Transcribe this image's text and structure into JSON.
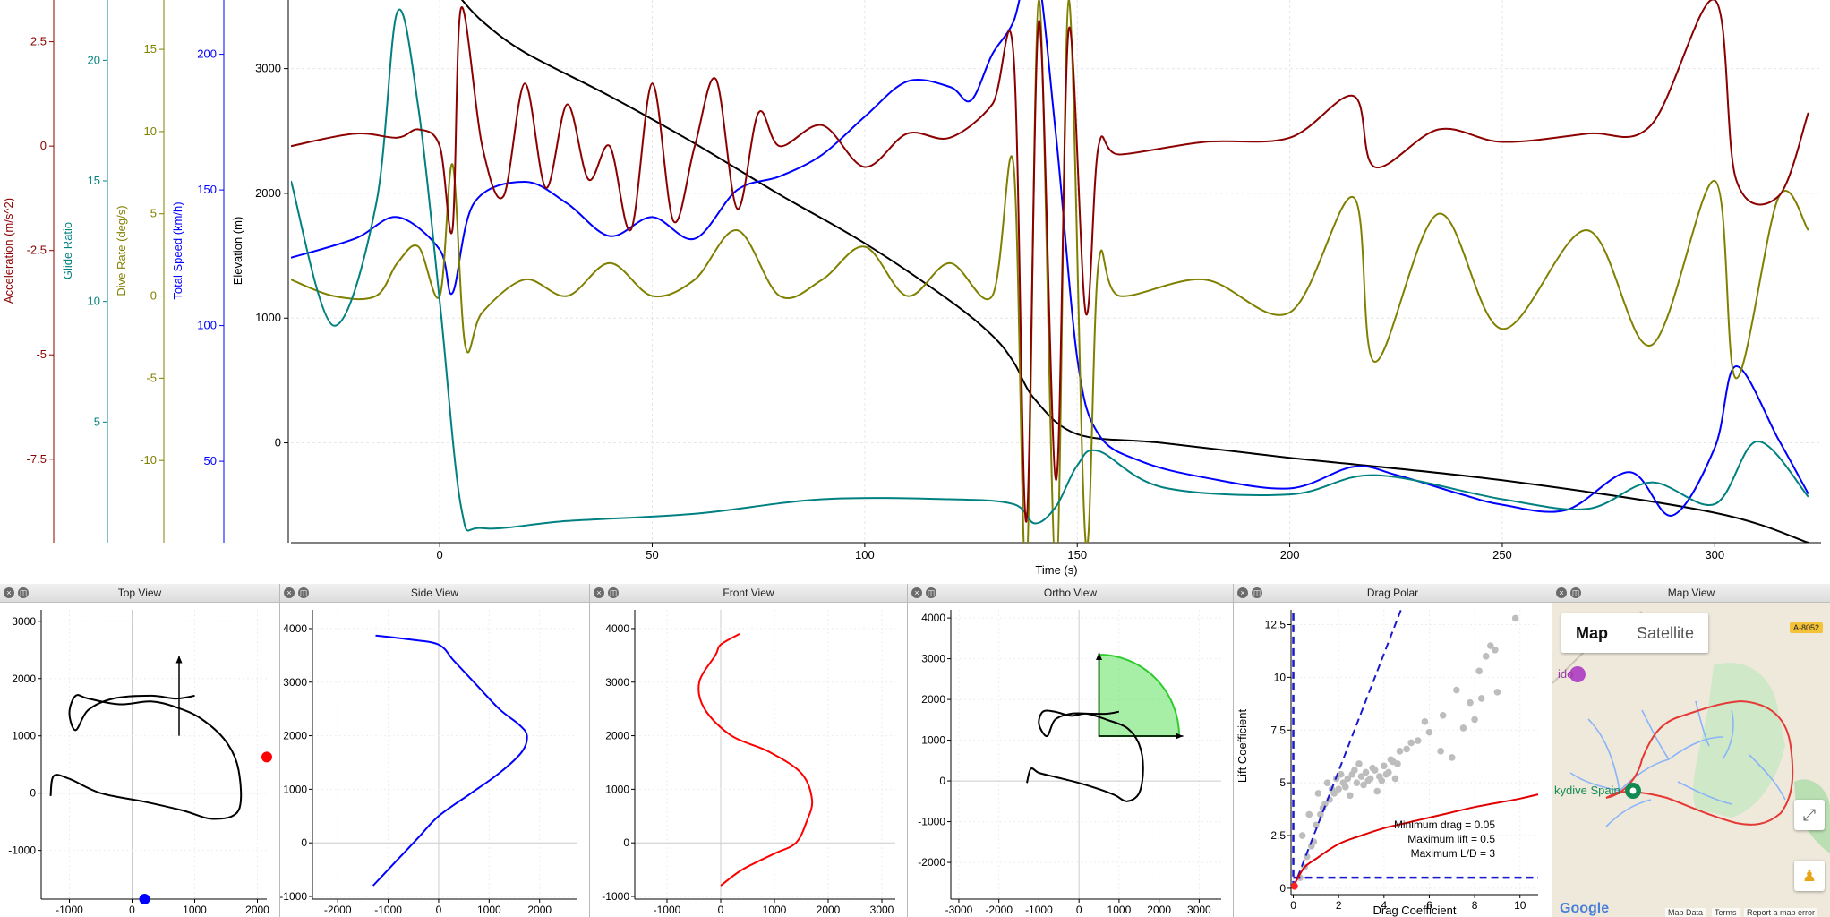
{
  "chart_data": [
    {
      "name": "time-series",
      "type": "line",
      "xlabel": "Time (s)",
      "xlim": [
        -35,
        325
      ],
      "xticks": [
        0,
        50,
        100,
        150,
        200,
        250,
        300
      ],
      "axes": [
        {
          "label": "Acceleration (m/s^2)",
          "color": "#8b0000",
          "range": [
            -9.5,
            3.5
          ],
          "ticks": [
            2.5,
            0,
            -2.5,
            -5,
            -7.5
          ]
        },
        {
          "label": "Glide Ratio",
          "color": "#008080",
          "range": [
            0,
            22.5
          ],
          "ticks": [
            20,
            15,
            10,
            5
          ]
        },
        {
          "label": "Dive Rate (deg/s)",
          "color": "#808000",
          "range": [
            -15,
            18
          ],
          "ticks": [
            15,
            10,
            5,
            0,
            -5,
            -10
          ]
        },
        {
          "label": "Total Speed (km/h)",
          "color": "#0000ff",
          "range": [
            20,
            220
          ],
          "ticks": [
            200,
            150,
            100,
            50
          ]
        },
        {
          "label": "Elevation (m)",
          "color": "#000000",
          "range": [
            -800,
            3550
          ],
          "ticks": [
            3000,
            2000,
            1000,
            0
          ]
        }
      ],
      "series": [
        {
          "name": "Elevation (m)",
          "axis": 4,
          "color": "#000000",
          "x": [
            5,
            10,
            20,
            40,
            60,
            80,
            100,
            120,
            130,
            135,
            140,
            150,
            170,
            200,
            250,
            300,
            322
          ],
          "y": [
            3560,
            3380,
            3130,
            2780,
            2400,
            1990,
            1600,
            1140,
            860,
            650,
            350,
            70,
            0,
            -120,
            -300,
            -560,
            -800
          ]
        },
        {
          "name": "Total Speed (km/h)",
          "axis": 3,
          "color": "#0000ff",
          "x": [
            -35,
            -20,
            -10,
            0,
            3,
            8,
            20,
            30,
            40,
            50,
            60,
            70,
            80,
            90,
            100,
            110,
            120,
            125,
            130,
            135,
            140,
            145,
            150,
            155,
            165,
            180,
            200,
            215,
            225,
            240,
            250,
            265,
            280,
            290,
            300,
            305,
            315,
            322
          ],
          "y": [
            125,
            132,
            140,
            128,
            112,
            145,
            153,
            145,
            133,
            140,
            132,
            150,
            155,
            163,
            177,
            190,
            188,
            183,
            200,
            212,
            235,
            170,
            88,
            60,
            50,
            44,
            40,
            48,
            45,
            38,
            34,
            32,
            46,
            30,
            55,
            85,
            58,
            38
          ]
        },
        {
          "name": "Dive Rate (deg/s)",
          "axis": 2,
          "color": "#808000",
          "x": [
            -35,
            -25,
            -15,
            -10,
            -5,
            0,
            3,
            6,
            10,
            20,
            30,
            40,
            50,
            60,
            70,
            80,
            90,
            100,
            110,
            120,
            130,
            135,
            138,
            141,
            145,
            148,
            152,
            155,
            160,
            180,
            200,
            215,
            220,
            235,
            250,
            270,
            285,
            300,
            305,
            315,
            322
          ],
          "y": [
            1,
            0,
            0,
            2,
            3,
            0,
            8,
            -3,
            -1,
            1,
            0,
            2,
            0,
            1,
            4,
            0,
            1,
            3,
            0,
            2,
            0,
            8,
            -17,
            18,
            -17,
            18,
            -15,
            2,
            0,
            1,
            -1,
            6,
            -4,
            5,
            -2,
            4,
            -3,
            7,
            -5,
            6,
            4
          ]
        },
        {
          "name": "Glide Ratio",
          "axis": 1,
          "color": "#008080",
          "x": [
            -35,
            -25,
            -15,
            -10,
            -5,
            0,
            5,
            10,
            30,
            60,
            90,
            120,
            135,
            140,
            145,
            150,
            155,
            170,
            200,
            220,
            250,
            270,
            285,
            300,
            310,
            322
          ],
          "y": [
            15,
            9,
            14,
            22,
            18,
            10,
            1.5,
            0.6,
            0.9,
            1.2,
            1.8,
            1.8,
            1.6,
            0.8,
            1.5,
            3.2,
            3.8,
            2.3,
            2.0,
            2.8,
            1.8,
            1.4,
            2.5,
            1.6,
            4.2,
            1.9
          ]
        },
        {
          "name": "Acceleration (m/s^2)",
          "axis": 0,
          "color": "#8b0000",
          "x": [
            -35,
            -20,
            -10,
            -5,
            0,
            3,
            5,
            10,
            15,
            20,
            25,
            30,
            35,
            40,
            45,
            50,
            55,
            60,
            65,
            70,
            75,
            80,
            90,
            100,
            110,
            120,
            130,
            135,
            138,
            141,
            145,
            148,
            152,
            155,
            160,
            180,
            200,
            215,
            220,
            235,
            250,
            270,
            285,
            300,
            305,
            315,
            322
          ],
          "y": [
            0,
            0.3,
            0.2,
            0.4,
            0,
            -2,
            3.3,
            0,
            -1.2,
            1.5,
            -1,
            1,
            -0.8,
            0,
            -2,
            1.5,
            -1.8,
            0,
            1.6,
            -1.5,
            0.8,
            0,
            0.5,
            -0.5,
            0.3,
            0.2,
            1,
            2.2,
            -9,
            3,
            -8,
            2.8,
            -4,
            0,
            -0.2,
            0.1,
            0.2,
            1.2,
            -0.5,
            0.4,
            0.1,
            0.3,
            0.5,
            3.5,
            -0.8,
            -1.2,
            0.8
          ]
        }
      ]
    },
    {
      "name": "top-view",
      "type": "line",
      "title": "Top View",
      "xlim": [
        -1450,
        2150
      ],
      "ylim": [
        -1850,
        3200
      ],
      "xticks": [
        -1000,
        0,
        1000,
        2000
      ],
      "yticks": [
        3000,
        2000,
        1000,
        0,
        -1000
      ],
      "series": [
        {
          "color": "#000000",
          "x": [
            -1300,
            -1250,
            -1000,
            -500,
            200,
            800,
            1300,
            1700,
            1700,
            1500,
            1100,
            700,
            300,
            -200,
            -700,
            -900,
            -1000,
            -900,
            -700,
            -300,
            300,
            700,
            1000
          ],
          "y": [
            -50,
            300,
            250,
            0,
            -150,
            -300,
            -450,
            -300,
            400,
            900,
            1300,
            1500,
            1600,
            1550,
            1650,
            1700,
            1400,
            1100,
            1450,
            1650,
            1700,
            1650,
            1700
          ]
        }
      ],
      "arrow": {
        "x": [
          750,
          750
        ],
        "y": [
          1000,
          2400
        ]
      },
      "markers": [
        {
          "x": 200,
          "y": -1850,
          "color": "#0000ff"
        },
        {
          "x": 2150,
          "y": 630,
          "color": "#ff0000"
        }
      ]
    },
    {
      "name": "side-view",
      "type": "line",
      "title": "Side View",
      "xlim": [
        -2500,
        2750
      ],
      "ylim": [
        -1050,
        4350
      ],
      "xticks": [
        -2000,
        -1000,
        0,
        1000,
        2000
      ],
      "yticks": [
        4000,
        3000,
        2000,
        1000,
        0,
        -1000
      ],
      "series": [
        {
          "color": "#0000ff",
          "x": [
            -1250,
            -600,
            0,
            300,
            700,
            1200,
            1600,
            1750,
            1650,
            1200,
            600,
            0,
            -400,
            -700,
            -1000,
            -1300
          ],
          "y": [
            3870,
            3800,
            3700,
            3400,
            3000,
            2500,
            2200,
            2000,
            1700,
            1300,
            900,
            500,
            100,
            -200,
            -500,
            -800
          ]
        }
      ]
    },
    {
      "name": "front-view",
      "type": "line",
      "title": "Front View",
      "xlim": [
        -1600,
        3250
      ],
      "ylim": [
        -1050,
        4350
      ],
      "xticks": [
        -1000,
        0,
        1000,
        2000,
        3000
      ],
      "yticks": [
        4000,
        3000,
        2000,
        1000,
        0,
        -1000
      ],
      "series": [
        {
          "color": "#ff0000",
          "x": [
            350,
            0,
            -100,
            -400,
            -300,
            200,
            900,
            1500,
            1700,
            1600,
            1400,
            1000,
            400,
            0
          ],
          "y": [
            3900,
            3700,
            3500,
            3000,
            2500,
            2000,
            1700,
            1300,
            800,
            400,
            0,
            -200,
            -500,
            -800
          ]
        }
      ]
    },
    {
      "name": "ortho-view",
      "type": "line",
      "title": "Ortho View",
      "xlim": [
        -3200,
        3550
      ],
      "ylim": [
        -2900,
        4200
      ],
      "xticks": [
        -3000,
        -2000,
        -1000,
        0,
        1000,
        2000,
        3000
      ],
      "yticks": [
        4000,
        3000,
        2000,
        1000,
        0,
        -1000,
        -2000
      ],
      "series": [
        {
          "color": "#000000",
          "x": [
            -1300,
            -1200,
            -1000,
            -600,
            0,
            500,
            900,
            1200,
            1500,
            1600,
            1500,
            1200,
            700,
            200,
            -200,
            -600,
            -900,
            -1000,
            -800,
            -600,
            -200,
            300,
            700,
            1000
          ],
          "y": [
            -50,
            300,
            200,
            100,
            -50,
            -200,
            -350,
            -500,
            -300,
            300,
            900,
            1300,
            1500,
            1650,
            1600,
            1700,
            1700,
            1400,
            1100,
            1500,
            1650,
            1650,
            1650,
            1700
          ]
        }
      ],
      "sector": {
        "cx": 500,
        "cy": 1100,
        "r": 2000
      },
      "arrows": [
        {
          "x": [
            500,
            500
          ],
          "y": [
            1100,
            3150
          ]
        },
        {
          "x": [
            500,
            2600
          ],
          "y": [
            1100,
            1100
          ]
        }
      ]
    },
    {
      "name": "drag-polar",
      "type": "scatter",
      "title": "Drag Polar",
      "xlabel": "Drag Coefficient",
      "ylabel": "Lift Coefficient",
      "xlim": [
        -0.1,
        10.8
      ],
      "ylim": [
        -0.3,
        13.2
      ],
      "xticks": [
        0,
        2,
        4,
        6,
        8,
        10
      ],
      "yticks": [
        12.5,
        10,
        7.5,
        5,
        2.5,
        0
      ],
      "points": {
        "x": [
          0.5,
          0.8,
          1,
          1.2,
          1.4,
          1.6,
          1.8,
          2,
          2.2,
          2.4,
          2.6,
          2.8,
          3,
          3.2,
          3.4,
          3.6,
          3.8,
          4,
          4.2,
          4.4,
          4.6,
          0.7,
          1.1,
          1.5,
          1.9,
          2.3,
          2.7,
          3.1,
          3.5,
          3.9,
          4.3,
          4.7,
          5,
          5.5,
          6,
          6.5,
          7,
          7.5,
          8,
          8.3,
          8.5,
          8.7,
          8.9,
          9,
          8.2,
          7.8,
          9.8,
          0.3,
          0.4,
          0.6,
          0.9,
          1.3,
          1.7,
          2.1,
          2.5,
          2.9,
          3.3,
          3.7,
          4.1,
          4.5,
          5.2,
          5.8,
          6.6,
          7.2
        ],
        "y": [
          1,
          2,
          3,
          3.5,
          4,
          4.2,
          4.5,
          4.7,
          5,
          5.2,
          5.4,
          5,
          5.3,
          5.5,
          5.2,
          5.6,
          5.3,
          5.8,
          5.5,
          6,
          5.9,
          3.5,
          4.5,
          5,
          5.2,
          4.8,
          5.6,
          4.9,
          5.7,
          5.1,
          6.1,
          6.5,
          6.6,
          7,
          7.4,
          6.5,
          6.2,
          7.6,
          8,
          9,
          11,
          11.5,
          11.3,
          9.3,
          10.3,
          8.8,
          12.8,
          0.5,
          2.5,
          1.5,
          2.2,
          3.8,
          4.7,
          5.4,
          4.4,
          5.9,
          5.1,
          4.6,
          5.4,
          5.2,
          6.9,
          7.9,
          8.2,
          9.4
        ]
      },
      "polar_curve": {
        "x": [
          0,
          0.1,
          0.5,
          1,
          2,
          3,
          4,
          5,
          6,
          7,
          8,
          9,
          10,
          10.8
        ],
        "y": [
          0.05,
          0.3,
          1,
          1.4,
          2.1,
          2.5,
          2.85,
          3.1,
          3.35,
          3.6,
          3.85,
          4.05,
          4.25,
          4.45
        ]
      },
      "annotations": [
        "Minimum drag = 0.05",
        "Maximum lift = 0.5",
        "Maximum L/D = 3"
      ]
    }
  ],
  "map": {
    "title": "Map View",
    "tab_map": "Map",
    "tab_satellite": "Satellite",
    "road_label": "A-8052",
    "place_labels": [
      "ido",
      "kydive Spain"
    ],
    "google": "Google",
    "footer_map_data": "Map Data",
    "footer_terms": "Terms",
    "footer_report": "Report a map error",
    "colors": {
      "land": "#efe9dc",
      "green": "#c8e6c0",
      "river": "#8ab4f8",
      "track": "#e53935"
    }
  }
}
